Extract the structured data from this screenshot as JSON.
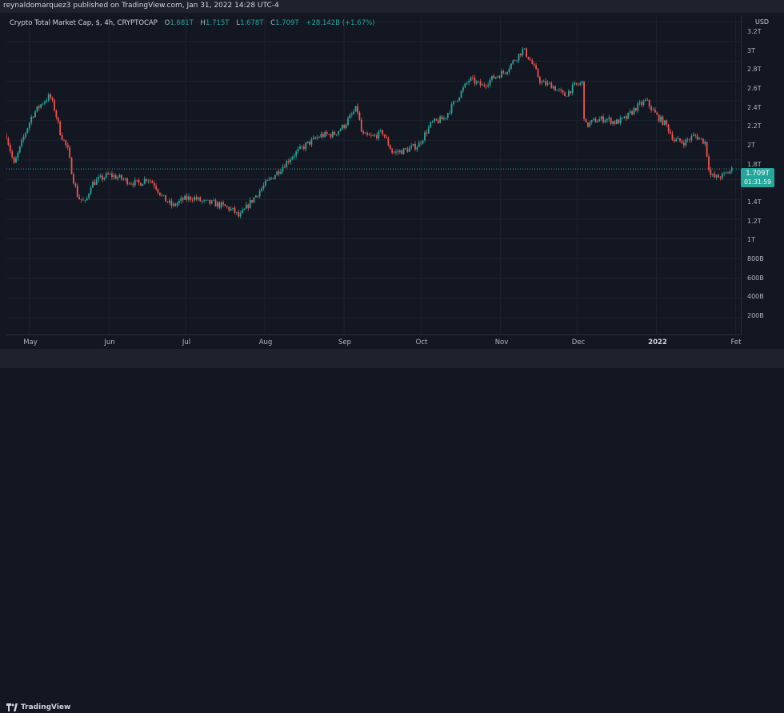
{
  "header": {
    "publisher_line": "reynaldomarquez3 published on TradingView.com, Jan 31, 2022 14:28 UTC-4"
  },
  "legend": {
    "symbol": "Crypto Total Market Cap, $, 4h, CRYPTOCAP",
    "open_label": "O",
    "open": "1.681T",
    "high_label": "H",
    "high": "1.715T",
    "low_label": "L",
    "low": "1.678T",
    "close_label": "C",
    "close": "1.709T",
    "change": "+28.142B (+1.67%)"
  },
  "price_axis": {
    "currency": "USD",
    "ticks": [
      "3.2T",
      "3T",
      "2.8T",
      "2.6T",
      "2.4T",
      "2.2T",
      "2T",
      "1.8T",
      "1.4T",
      "1.2T",
      "1T",
      "800B",
      "600B",
      "400B",
      "200B"
    ]
  },
  "last_price": {
    "price": "1.709T",
    "countdown": "01:31:59"
  },
  "time_axis": {
    "labels": [
      "May",
      "Jun",
      "Jul",
      "Aug",
      "Sep",
      "Oct",
      "Nov",
      "Dec",
      "2022",
      "Fet"
    ],
    "bold_label": "2022"
  },
  "footer": {
    "brand": "TradingView"
  },
  "colors": {
    "background": "#131722",
    "up": "#26a69a",
    "down": "#ef5350",
    "grid": "#1e222d",
    "axis_text": "#b2b5be"
  },
  "chart_data": {
    "type": "candlestick",
    "title": "Crypto Total Market Cap, $, 4h, CRYPTOCAP",
    "unit": "T USD",
    "ylim": [
      0.03,
      3.26
    ],
    "x_range": [
      "Apr 22",
      "Feb 3"
    ],
    "trend": [
      [
        "Apr 22",
        2.05
      ],
      [
        "Apr 25",
        1.75
      ],
      [
        "Apr 29",
        2.05
      ],
      [
        "May 2",
        2.25
      ],
      [
        "May 6",
        2.38
      ],
      [
        "May 9",
        2.45
      ],
      [
        "May 11",
        2.3
      ],
      [
        "May 13",
        2.08
      ],
      [
        "May 16",
        1.9
      ],
      [
        "May 18",
        1.62
      ],
      [
        "May 20",
        1.42
      ],
      [
        "May 23",
        1.36
      ],
      [
        "May 25",
        1.55
      ],
      [
        "May 28",
        1.6
      ],
      [
        "Jun 1",
        1.65
      ],
      [
        "Jun 5",
        1.62
      ],
      [
        "Jun 9",
        1.58
      ],
      [
        "Jun 13",
        1.56
      ],
      [
        "Jun 16",
        1.62
      ],
      [
        "Jun 19",
        1.55
      ],
      [
        "Jun 22",
        1.42
      ],
      [
        "Jun 26",
        1.33
      ],
      [
        "Jun 30",
        1.4
      ],
      [
        "Jul 4",
        1.42
      ],
      [
        "Jul 8",
        1.37
      ],
      [
        "Jul 12",
        1.36
      ],
      [
        "Jul 16",
        1.33
      ],
      [
        "Jul 20",
        1.28
      ],
      [
        "Jul 22",
        1.22
      ],
      [
        "Jul 26",
        1.36
      ],
      [
        "Aug 1",
        1.55
      ],
      [
        "Aug 6",
        1.68
      ],
      [
        "Aug 12",
        1.85
      ],
      [
        "Aug 18",
        1.97
      ],
      [
        "Aug 23",
        2.05
      ],
      [
        "Aug 28",
        2.06
      ],
      [
        "Sep 1",
        2.15
      ],
      [
        "Sep 6",
        2.33
      ],
      [
        "Sep 8",
        2.05
      ],
      [
        "Sep 12",
        2.03
      ],
      [
        "Sep 16",
        2.08
      ],
      [
        "Sep 20",
        1.87
      ],
      [
        "Sep 25",
        1.9
      ],
      [
        "Sep 30",
        1.95
      ],
      [
        "Oct 5",
        2.17
      ],
      [
        "Oct 10",
        2.22
      ],
      [
        "Oct 15",
        2.42
      ],
      [
        "Oct 20",
        2.62
      ],
      [
        "Oct 25",
        2.55
      ],
      [
        "Oct 29",
        2.63
      ],
      [
        "Nov 3",
        2.7
      ],
      [
        "Nov 8",
        2.86
      ],
      [
        "Nov 10",
        2.92
      ],
      [
        "Nov 13",
        2.8
      ],
      [
        "Nov 17",
        2.58
      ],
      [
        "Nov 21",
        2.56
      ],
      [
        "Nov 26",
        2.45
      ],
      [
        "Nov 30",
        2.55
      ],
      [
        "Dec 3",
        2.58
      ],
      [
        "Dec 4",
        2.14
      ],
      [
        "Dec 8",
        2.2
      ],
      [
        "Dec 12",
        2.22
      ],
      [
        "Dec 16",
        2.18
      ],
      [
        "Dec 20",
        2.22
      ],
      [
        "Dec 24",
        2.33
      ],
      [
        "Dec 28",
        2.4
      ],
      [
        "Jan 1",
        2.25
      ],
      [
        "Jan 5",
        2.15
      ],
      [
        "Jan 8",
        2.0
      ],
      [
        "Jan 12",
        1.98
      ],
      [
        "Jan 16",
        2.05
      ],
      [
        "Jan 20",
        1.98
      ],
      [
        "Jan 22",
        1.65
      ],
      [
        "Jan 24",
        1.62
      ],
      [
        "Jan 27",
        1.64
      ],
      [
        "Jan 31",
        1.709
      ]
    ]
  }
}
